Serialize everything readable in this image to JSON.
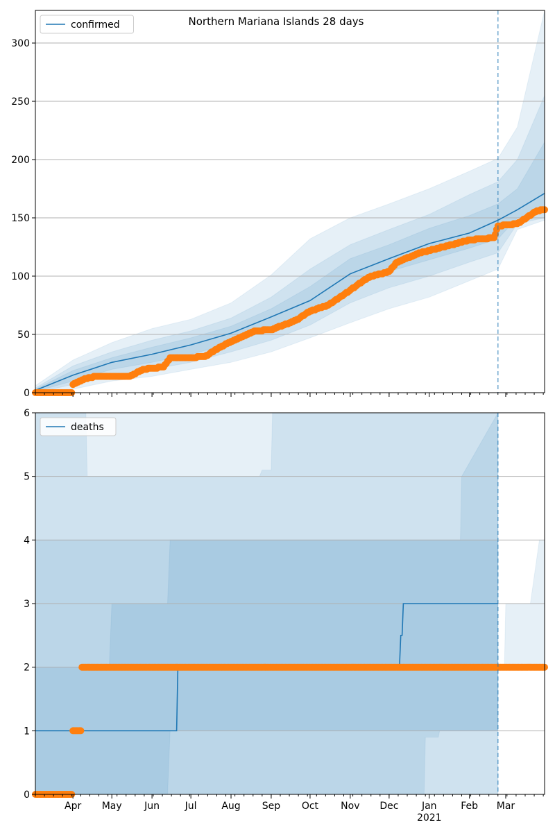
{
  "chart_data": [
    {
      "type": "line",
      "title": "Northern Mariana Islands 28 days",
      "xlabel": "",
      "ylabel": "",
      "ylim": [
        0,
        328
      ],
      "yticks": [
        0,
        50,
        100,
        150,
        200,
        250,
        300
      ],
      "grid": "horizontal",
      "legend": {
        "placement": "top-left",
        "entries": [
          "confirmed"
        ]
      },
      "forecast_start": "2021-02-23",
      "series": [
        {
          "name": "confirmed",
          "role": "model",
          "color": "#1f77b4",
          "x": [
            "2020-03-03",
            "2020-04-01",
            "2020-05-01",
            "2020-06-01",
            "2020-07-01",
            "2020-08-01",
            "2020-09-01",
            "2020-10-01",
            "2020-11-01",
            "2020-12-01",
            "2021-01-01",
            "2021-02-01",
            "2021-02-23",
            "2021-03-10",
            "2021-03-31"
          ],
          "values": [
            2,
            15,
            26,
            33,
            41,
            51,
            65,
            79,
            102,
            115,
            128,
            137,
            148,
            157,
            171
          ]
        },
        {
          "role": "observed",
          "color": "#ff7f0e",
          "x": [
            "2020-03-03",
            "2020-03-31",
            "2020-04-01",
            "2020-04-08",
            "2020-04-18",
            "2020-05-15",
            "2020-05-25",
            "2020-06-10",
            "2020-06-15",
            "2020-06-30",
            "2020-07-12",
            "2020-07-22",
            "2020-08-01",
            "2020-08-20",
            "2020-09-01",
            "2020-09-20",
            "2020-10-01",
            "2020-10-15",
            "2020-11-01",
            "2020-11-15",
            "2020-12-01",
            "2020-12-07",
            "2020-12-25",
            "2021-01-15",
            "2021-02-01",
            "2021-02-20",
            "2021-02-23",
            "2021-03-10",
            "2021-03-25",
            "2021-03-31"
          ],
          "values": [
            0,
            0,
            7,
            11,
            14,
            14,
            20,
            22,
            30,
            30,
            31,
            38,
            44,
            53,
            54,
            62,
            70,
            75,
            88,
            99,
            104,
            112,
            120,
            126,
            131,
            133,
            143,
            145,
            156,
            157
          ]
        }
      ],
      "bands": [
        {
          "color": "#1f77b4",
          "x": [
            "2020-03-03",
            "2020-04-01",
            "2020-05-01",
            "2020-06-01",
            "2020-07-01",
            "2020-08-01",
            "2020-09-01",
            "2020-10-01",
            "2020-11-01",
            "2020-12-01",
            "2021-01-01",
            "2021-02-01",
            "2021-02-23",
            "2021-03-10",
            "2021-03-31"
          ],
          "lower": [
            0,
            3,
            10,
            14,
            20,
            26,
            35,
            47,
            60,
            72,
            82,
            96,
            106,
            140,
            148
          ],
          "upper": [
            6,
            28,
            43,
            55,
            63,
            77,
            101,
            132,
            150,
            162,
            175,
            190,
            201,
            228,
            328
          ]
        },
        {
          "color": "#1f77b4",
          "x": [
            "2020-03-03",
            "2020-04-01",
            "2020-05-01",
            "2020-06-01",
            "2020-07-01",
            "2020-08-01",
            "2020-09-01",
            "2020-10-01",
            "2020-11-01",
            "2020-12-01",
            "2021-01-01",
            "2021-02-01",
            "2021-02-23",
            "2021-03-10",
            "2021-03-31"
          ],
          "lower": [
            0,
            7,
            15,
            20,
            26,
            35,
            45,
            58,
            77,
            90,
            100,
            112,
            120,
            145,
            150
          ],
          "upper": [
            4,
            23,
            35,
            45,
            53,
            64,
            82,
            106,
            127,
            140,
            153,
            170,
            181,
            200,
            255
          ]
        },
        {
          "color": "#1f77b4",
          "x": [
            "2020-03-03",
            "2020-04-01",
            "2020-05-01",
            "2020-06-01",
            "2020-07-01",
            "2020-08-01",
            "2020-09-01",
            "2020-10-01",
            "2020-11-01",
            "2020-12-01",
            "2021-01-01",
            "2021-02-01",
            "2021-02-23",
            "2021-03-10",
            "2021-03-31"
          ],
          "lower": [
            1,
            10,
            20,
            26,
            33,
            42,
            55,
            68,
            90,
            104,
            114,
            124,
            132,
            150,
            155
          ],
          "upper": [
            3,
            19,
            30,
            39,
            47,
            57,
            72,
            91,
            115,
            127,
            141,
            152,
            162,
            175,
            215
          ]
        }
      ]
    },
    {
      "type": "line",
      "title": "",
      "xlabel": "",
      "ylabel": "",
      "ylim": [
        0,
        6
      ],
      "yticks": [
        0,
        1,
        2,
        3,
        4,
        5,
        6
      ],
      "grid": "horizontal",
      "legend": {
        "placement": "top-left",
        "entries": [
          "deaths"
        ]
      },
      "forecast_start": "2021-02-23",
      "xticks": [
        "Apr",
        "May",
        "Jun",
        "Jul",
        "Aug",
        "Sep",
        "Oct",
        "Nov",
        "Dec",
        "Jan",
        "Feb",
        "Mar"
      ],
      "xtick_dates": [
        "2020-04-01",
        "2020-05-01",
        "2020-06-01",
        "2020-07-01",
        "2020-08-01",
        "2020-09-01",
        "2020-10-01",
        "2020-11-01",
        "2020-12-01",
        "2021-01-01",
        "2021-02-01",
        "2021-03-01"
      ],
      "year_label": "2021",
      "year_label_date": "2021-01-01",
      "series": [
        {
          "name": "deaths",
          "role": "model",
          "color": "#1f77b4",
          "x": [
            "2020-03-03",
            "2020-06-20",
            "2020-06-21",
            "2020-12-09",
            "2020-12-10",
            "2020-12-11",
            "2020-12-12",
            "2021-02-23"
          ],
          "values": [
            1,
            1,
            2,
            2,
            2.5,
            2.5,
            3,
            3
          ]
        },
        {
          "role": "observed",
          "color": "#ff7f0e",
          "x": [
            "2020-03-03",
            "2020-03-30",
            "2020-03-31",
            "2020-04-06",
            "2020-04-07",
            "2021-03-31"
          ],
          "values": [
            0,
            0,
            1,
            1,
            2,
            2
          ]
        }
      ],
      "bands": [
        {
          "color": "#1f77b4",
          "x": [
            "2020-03-03",
            "2020-09-01",
            "2020-09-02",
            "2020-12-28",
            "2020-12-29",
            "2021-02-23"
          ],
          "lower": [
            0,
            0,
            0,
            0,
            0,
            0
          ],
          "upper": [
            6,
            6,
            6,
            6,
            6,
            6
          ]
        },
        {
          "color": "#1f77b4",
          "x": [
            "2020-03-03",
            "2020-04-11",
            "2020-04-12",
            "2020-08-23",
            "2020-08-25",
            "2020-09-01",
            "2020-09-02",
            "2020-12-28",
            "2020-12-29",
            "2021-02-23"
          ],
          "lower": [
            0,
            0,
            0,
            0,
            0,
            0,
            0,
            0,
            0,
            0
          ],
          "upper": [
            6,
            6,
            5,
            5,
            5.1,
            5.1,
            6,
            6,
            6,
            6
          ]
        },
        {
          "color": "#1f77b4",
          "x": [
            "2020-03-03",
            "2020-04-11",
            "2020-04-12",
            "2020-08-30",
            "2020-09-01",
            "2020-12-28",
            "2020-12-29",
            "2021-01-08",
            "2021-01-09",
            "2021-02-23"
          ],
          "lower": [
            0,
            0,
            0,
            0,
            0,
            0,
            0.9,
            0.9,
            1,
            1
          ],
          "upper": [
            4,
            4,
            4,
            4,
            4,
            4,
            4,
            4,
            4,
            4
          ]
        },
        {
          "color": "#1f77b4",
          "x": [
            "2020-03-03",
            "2020-04-29",
            "2020-05-01",
            "2020-06-13",
            "2020-06-15",
            "2020-12-28",
            "2020-12-29",
            "2021-01-25",
            "2021-01-26",
            "2021-02-23"
          ],
          "lower": [
            0,
            0,
            0,
            0,
            1,
            1,
            1,
            1,
            1,
            1
          ],
          "upper": [
            2,
            2,
            3,
            3,
            4,
            4,
            4,
            4,
            5,
            6
          ]
        },
        {
          "color": "#1f77b4",
          "x": [
            "2021-02-23",
            "2021-02-28",
            "2021-03-01",
            "2021-03-20",
            "2021-03-27",
            "2021-03-31"
          ],
          "lower": [
            2,
            2,
            2,
            2,
            2,
            2
          ],
          "upper": [
            2,
            2,
            3,
            3,
            4,
            4
          ]
        }
      ]
    }
  ]
}
